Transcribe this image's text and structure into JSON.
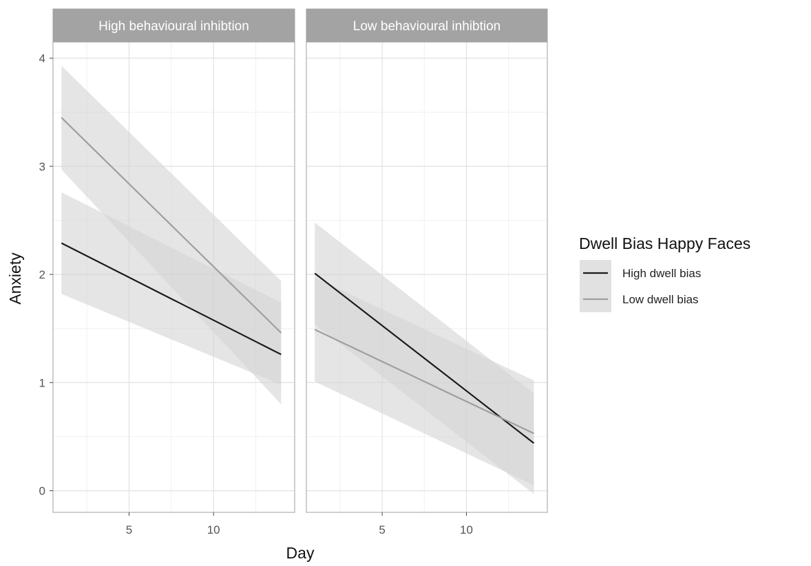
{
  "chart_data": {
    "type": "line",
    "x_label": "Day",
    "y_label": "Anxiety",
    "xlim": [
      0.5,
      14.8
    ],
    "ylim": [
      -0.2,
      4.15
    ],
    "x_ticks": [
      5,
      10
    ],
    "y_ticks": [
      0,
      1,
      2,
      3,
      4
    ],
    "grid": true,
    "legend": {
      "title": "Dwell Bias Happy Faces",
      "placement": "right",
      "entries": [
        {
          "name": "High dwell bias",
          "color": "#1a1a1a"
        },
        {
          "name": "Low dwell bias",
          "color": "#9e9e9e"
        }
      ]
    },
    "ribbon_color": "#d4d4d4",
    "panels": [
      {
        "title": "High behavioural inhibtion",
        "series": [
          {
            "name": "High dwell bias",
            "x": [
              1,
              14
            ],
            "y": [
              2.29,
              1.26
            ],
            "lower": [
              1.82,
              0.98
            ],
            "upper": [
              2.76,
              1.74
            ]
          },
          {
            "name": "Low dwell bias",
            "x": [
              1,
              14
            ],
            "y": [
              3.45,
              1.46
            ],
            "lower": [
              2.97,
              0.8
            ],
            "upper": [
              3.93,
              1.94
            ]
          }
        ]
      },
      {
        "title": "Low behavioural inhibtion",
        "series": [
          {
            "name": "High dwell bias",
            "x": [
              1,
              14
            ],
            "y": [
              2.01,
              0.44
            ],
            "lower": [
              1.54,
              -0.03
            ],
            "upper": [
              2.48,
              0.9
            ]
          },
          {
            "name": "Low dwell bias",
            "x": [
              1,
              14
            ],
            "y": [
              1.49,
              0.53
            ],
            "lower": [
              1.01,
              0.05
            ],
            "upper": [
              1.97,
              1.02
            ]
          }
        ]
      }
    ]
  }
}
